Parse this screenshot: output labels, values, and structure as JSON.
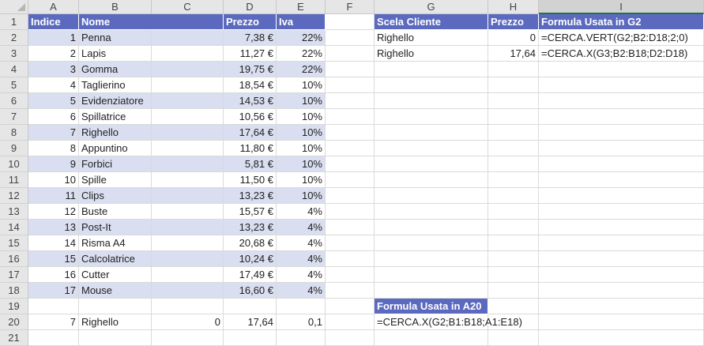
{
  "columns": [
    "A",
    "B",
    "C",
    "D",
    "E",
    "F",
    "G",
    "H",
    "I"
  ],
  "rows": [
    "1",
    "2",
    "3",
    "4",
    "5",
    "6",
    "7",
    "8",
    "9",
    "10",
    "11",
    "12",
    "13",
    "14",
    "15",
    "16",
    "17",
    "18",
    "19",
    "20",
    "21"
  ],
  "table": {
    "headers": {
      "indice": "Indice",
      "nome": "Nome",
      "prezzo": "Prezzo",
      "iva": "Iva"
    },
    "items": [
      {
        "indice": "1",
        "nome": "Penna",
        "prezzo": "7,38 €",
        "iva": "22%"
      },
      {
        "indice": "2",
        "nome": "Lapis",
        "prezzo": "11,27 €",
        "iva": "22%"
      },
      {
        "indice": "3",
        "nome": "Gomma",
        "prezzo": "19,75 €",
        "iva": "22%"
      },
      {
        "indice": "4",
        "nome": "Taglierino",
        "prezzo": "18,54 €",
        "iva": "10%"
      },
      {
        "indice": "5",
        "nome": "Evidenziatore",
        "prezzo": "14,53 €",
        "iva": "10%"
      },
      {
        "indice": "6",
        "nome": "Spillatrice",
        "prezzo": "10,56 €",
        "iva": "10%"
      },
      {
        "indice": "7",
        "nome": "Righello",
        "prezzo": "17,64 €",
        "iva": "10%"
      },
      {
        "indice": "8",
        "nome": "Appuntino",
        "prezzo": "11,80 €",
        "iva": "10%"
      },
      {
        "indice": "9",
        "nome": "Forbici",
        "prezzo": "5,81 €",
        "iva": "10%"
      },
      {
        "indice": "10",
        "nome": "Spille",
        "prezzo": "11,50 €",
        "iva": "10%"
      },
      {
        "indice": "11",
        "nome": "Clips",
        "prezzo": "13,23 €",
        "iva": "10%"
      },
      {
        "indice": "12",
        "nome": "Buste",
        "prezzo": "15,57 €",
        "iva": "4%"
      },
      {
        "indice": "13",
        "nome": "Post-It",
        "prezzo": "13,23 €",
        "iva": "4%"
      },
      {
        "indice": "14",
        "nome": "Risma A4",
        "prezzo": "20,68 €",
        "iva": "4%"
      },
      {
        "indice": "15",
        "nome": "Calcolatrice",
        "prezzo": "10,24 €",
        "iva": "4%"
      },
      {
        "indice": "16",
        "nome": "Cutter",
        "prezzo": "17,49 €",
        "iva": "4%"
      },
      {
        "indice": "17",
        "nome": "Mouse",
        "prezzo": "16,60 €",
        "iva": "4%"
      }
    ]
  },
  "lookup": {
    "headers": {
      "scelta": "Scela Cliente",
      "prezzo": "Prezzo",
      "formula": "Formula Usata in G2"
    },
    "rows": [
      {
        "scelta": "Righello",
        "prezzo": "0",
        "formula": "=CERCA.VERT(G2;B2:D18;2;0)"
      },
      {
        "scelta": "Righello",
        "prezzo": "17,64",
        "formula": "=CERCA.X(G3;B2:B18;D2:D18)"
      }
    ]
  },
  "a20": {
    "header": "Formula Usata in A20",
    "formula": "=CERCA.X(G2;B1:B18;A1:E18)",
    "result": {
      "a": "7",
      "b": "Righello",
      "c": "0",
      "d": "17,64",
      "e": "0,1"
    }
  },
  "colors": {
    "header_fill": "#5b6abf",
    "band_fill": "#d9def0",
    "selection": "#217346"
  }
}
